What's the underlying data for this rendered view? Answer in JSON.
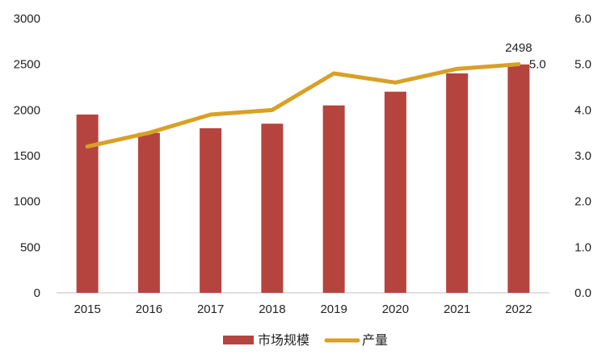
{
  "chart_data": {
    "type": "bar",
    "categories": [
      "2015",
      "2016",
      "2017",
      "2018",
      "2019",
      "2020",
      "2021",
      "2022"
    ],
    "series": [
      {
        "name": "市场规模",
        "type": "bar",
        "axis": "left",
        "color": "#B5443F",
        "values": [
          1950,
          1750,
          1800,
          1850,
          2050,
          2200,
          2400,
          2498
        ],
        "data_labels": [
          null,
          null,
          null,
          null,
          null,
          null,
          null,
          "2498"
        ]
      },
      {
        "name": "产量",
        "type": "line",
        "axis": "right",
        "color": "#D9A026",
        "values": [
          3.2,
          3.5,
          3.9,
          4.0,
          4.8,
          4.6,
          4.9,
          5.0
        ],
        "data_labels": [
          null,
          null,
          null,
          null,
          null,
          null,
          null,
          "5.0"
        ]
      }
    ],
    "y_left": {
      "ylim": [
        0,
        3000
      ],
      "ticks": [
        "0",
        "500",
        "1000",
        "1500",
        "2000",
        "2500",
        "3000"
      ]
    },
    "y_right": {
      "ylim": [
        0,
        6
      ],
      "ticks": [
        "0.0",
        "1.0",
        "2.0",
        "3.0",
        "4.0",
        "5.0",
        "6.0"
      ]
    },
    "grid": false,
    "legend": "bottom"
  }
}
